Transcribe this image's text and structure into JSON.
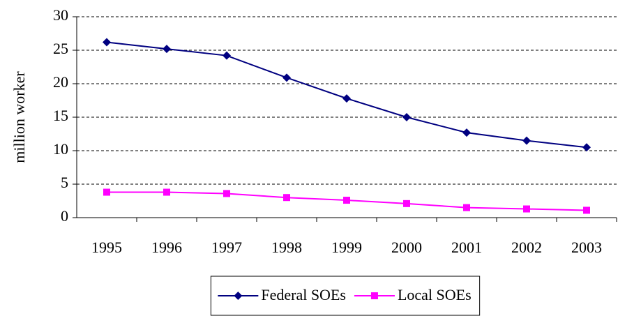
{
  "chart_data": {
    "type": "line",
    "y_label": "million worker",
    "categories": [
      "1995",
      "1996",
      "1997",
      "1998",
      "1999",
      "2000",
      "2001",
      "2002",
      "2003"
    ],
    "series": [
      {
        "name": "Federal SOEs",
        "color": "#000080",
        "marker": "diamond",
        "values": [
          26.2,
          25.2,
          24.2,
          20.9,
          17.8,
          15.0,
          12.7,
          11.5,
          10.5
        ]
      },
      {
        "name": "Local SOEs",
        "color": "#ff00ff",
        "marker": "square",
        "values": [
          3.8,
          3.8,
          3.6,
          3.0,
          2.6,
          2.1,
          1.5,
          1.3,
          1.1
        ]
      }
    ],
    "ylim": [
      0,
      30
    ],
    "yticks": [
      0,
      5,
      10,
      15,
      20,
      25,
      30
    ],
    "grid": true,
    "legend": "bottom"
  }
}
